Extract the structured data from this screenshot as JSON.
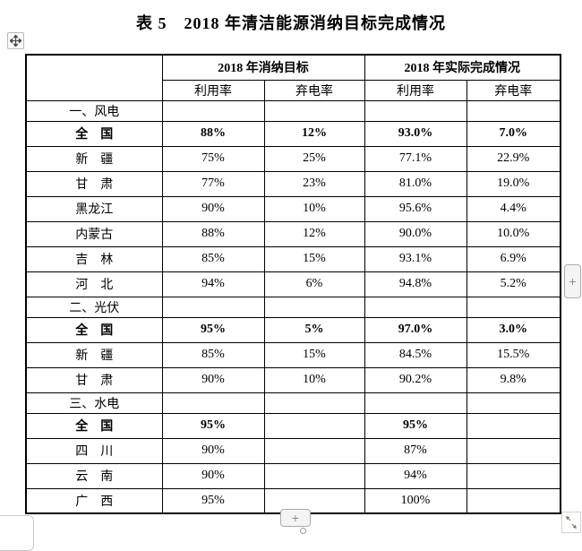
{
  "page": {
    "title": "表 5　2018 年清洁能源消纳目标完成情况"
  },
  "table": {
    "header": {
      "row_label_column": "",
      "groups": [
        {
          "label": "2018 年消纳目标"
        },
        {
          "label": "2018 年实际完成情况"
        }
      ],
      "sub_columns": [
        "利用率",
        "弃电率",
        "利用率",
        "弃电率"
      ]
    },
    "rows": [
      {
        "type": "section",
        "label": "一、风电"
      },
      {
        "type": "data",
        "label": "全　国",
        "bold": true,
        "values": [
          "88%",
          "12%",
          "93.0%",
          "7.0%"
        ]
      },
      {
        "type": "data",
        "label": "新　疆",
        "bold": false,
        "values": [
          "75%",
          "25%",
          "77.1%",
          "22.9%"
        ]
      },
      {
        "type": "data",
        "label": "甘　肃",
        "bold": false,
        "values": [
          "77%",
          "23%",
          "81.0%",
          "19.0%"
        ]
      },
      {
        "type": "data",
        "label": "黑龙江",
        "bold": false,
        "values": [
          "90%",
          "10%",
          "95.6%",
          "4.4%"
        ]
      },
      {
        "type": "data",
        "label": "内蒙古",
        "bold": false,
        "values": [
          "88%",
          "12%",
          "90.0%",
          "10.0%"
        ]
      },
      {
        "type": "data",
        "label": "吉　林",
        "bold": false,
        "values": [
          "85%",
          "15%",
          "93.1%",
          "6.9%"
        ]
      },
      {
        "type": "data",
        "label": "河　北",
        "bold": false,
        "values": [
          "94%",
          "6%",
          "94.8%",
          "5.2%"
        ]
      },
      {
        "type": "section",
        "label": "二、光伏"
      },
      {
        "type": "data",
        "label": "全　国",
        "bold": true,
        "values": [
          "95%",
          "5%",
          "97.0%",
          "3.0%"
        ]
      },
      {
        "type": "data",
        "label": "新　疆",
        "bold": false,
        "values": [
          "85%",
          "15%",
          "84.5%",
          "15.5%"
        ]
      },
      {
        "type": "data",
        "label": "甘　肃",
        "bold": false,
        "values": [
          "90%",
          "10%",
          "90.2%",
          "9.8%"
        ]
      },
      {
        "type": "section",
        "label": "三、水电"
      },
      {
        "type": "data",
        "label": "全　国",
        "bold": true,
        "values": [
          "95%",
          "",
          "95%",
          ""
        ]
      },
      {
        "type": "data",
        "label": "四　川",
        "bold": false,
        "values": [
          "90%",
          "",
          "87%",
          ""
        ]
      },
      {
        "type": "data",
        "label": "云　南",
        "bold": false,
        "values": [
          "90%",
          "",
          "94%",
          ""
        ]
      },
      {
        "type": "data",
        "label": "广　西",
        "bold": false,
        "values": [
          "95%",
          "",
          "100%",
          ""
        ]
      }
    ]
  },
  "controls": {
    "move_handle_icon": "four-way-move-cross",
    "add_column_button_label": "+",
    "add_row_button_label": "+",
    "resize_handle_icon": "diagonal-resize-arrows",
    "scroll_origin_marker": "small-circle"
  },
  "colors": {
    "table_border": "#000000",
    "text": "#000000",
    "control_bg": "#f4f4f4",
    "control_border": "#ababab",
    "control_glyph": "#8c8c8c",
    "faint_mark": "#c9c9c9"
  }
}
